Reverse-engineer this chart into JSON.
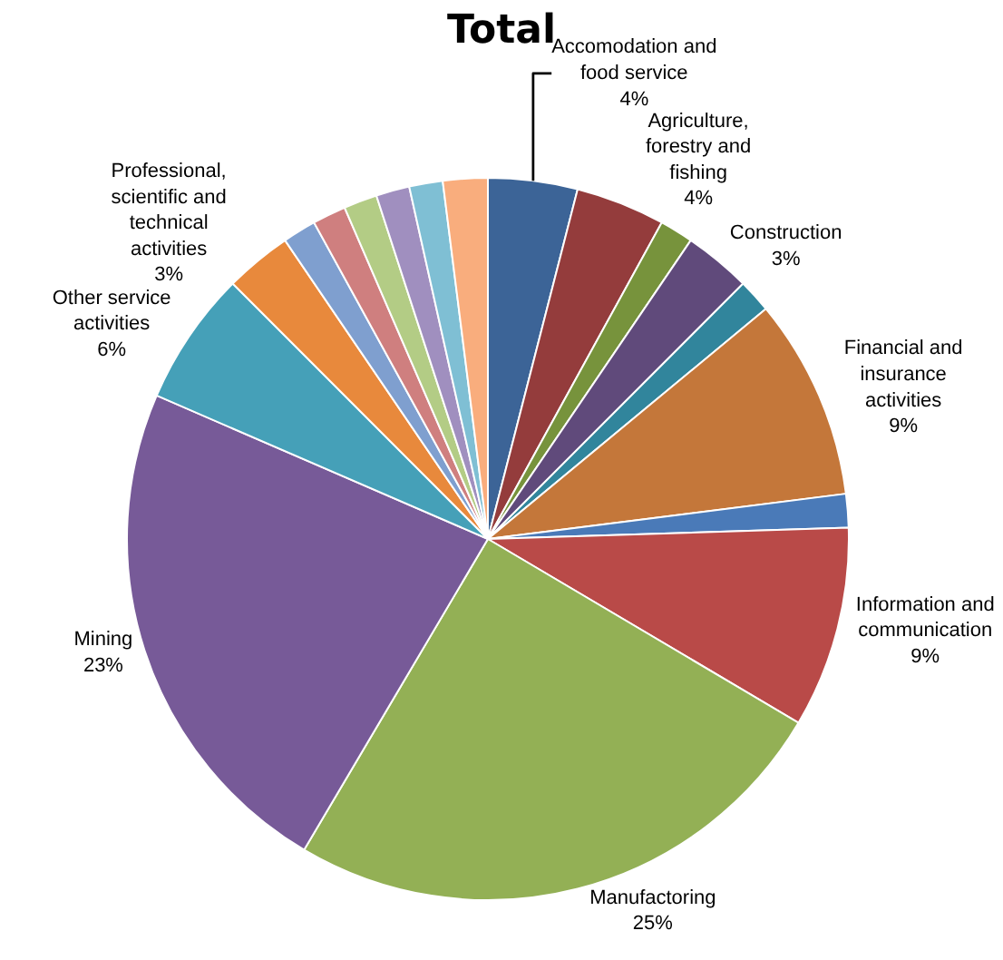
{
  "chart_data": {
    "type": "pie",
    "title": "Total",
    "categories": [
      "Accomodation and food service",
      "Agriculture, forestry and fishing",
      null,
      "Construction",
      null,
      "Financial and insurance activities",
      null,
      "Information and communication",
      "Manufactoring",
      "Mining",
      "Other service activities",
      "Professional, scientific and technical activities",
      null,
      null,
      null,
      null,
      null,
      null
    ],
    "values": [
      4,
      4,
      1.5,
      3,
      1.5,
      9,
      1.5,
      9,
      25,
      23,
      6,
      3,
      1.5,
      1.5,
      1.5,
      1.5,
      1.5,
      2
    ],
    "value_labels": [
      "4%",
      "4%",
      null,
      "3%",
      null,
      "9%",
      null,
      "9%",
      "25%",
      "23%",
      "6%",
      "3%",
      null,
      null,
      null,
      null,
      null,
      null
    ],
    "colors": [
      "#3c6497",
      "#943c3c",
      "#77933c",
      "#604a7b",
      "#31859c",
      "#c4773a",
      "#4a7ab8",
      "#b94a48",
      "#93b055",
      "#775a98",
      "#45a0b8",
      "#e8893c",
      "#7f9fcf",
      "#cf7f7f",
      "#b3cc85",
      "#a08fbf",
      "#7fbfd4",
      "#f9ad7d"
    ],
    "legend": false
  }
}
